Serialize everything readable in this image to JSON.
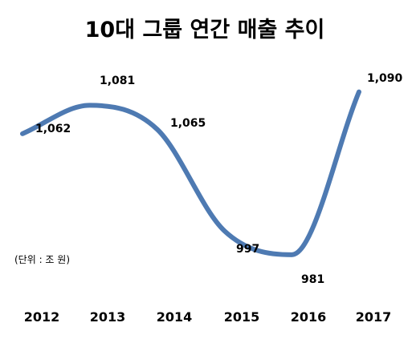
{
  "chart_data": {
    "type": "line",
    "title": "10대 그룹 연간 매출 추이",
    "unit_note": "(단위 : 조 원)",
    "x": [
      "2012",
      "2013",
      "2014",
      "2015",
      "2016",
      "2017"
    ],
    "series": [
      {
        "values": [
          1062,
          1081,
          1065,
          997,
          981,
          1090
        ],
        "data_labels": [
          "1,062",
          "1,081",
          "1,065",
          "997",
          "981",
          "1,090"
        ],
        "color": "#4e7ab2"
      }
    ],
    "ylim": [
      960,
      1100
    ],
    "grid": false,
    "legend": "none"
  }
}
